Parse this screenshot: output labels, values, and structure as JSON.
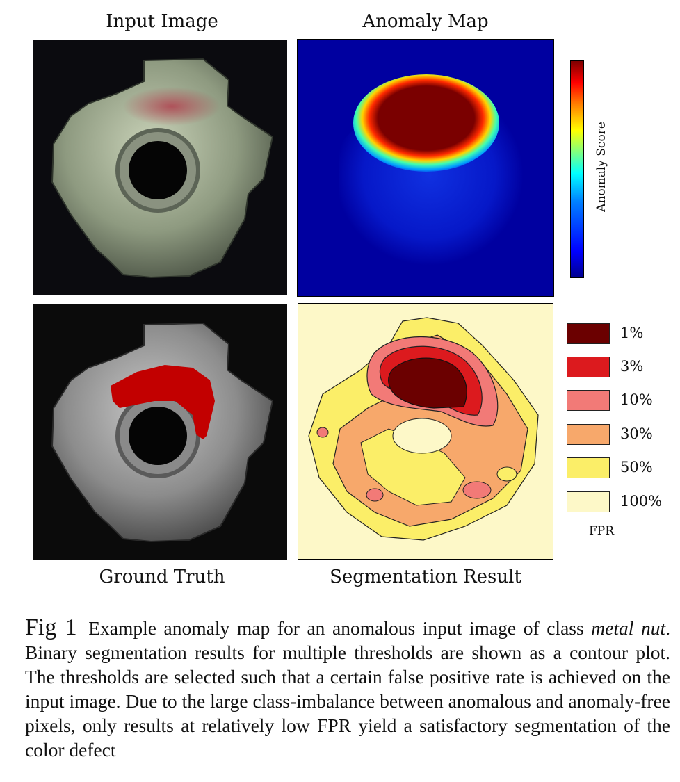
{
  "panels": {
    "input_title": "Input Image",
    "anomaly_title": "Anomaly Map",
    "gt_title": "Ground Truth",
    "seg_title": "Segmentation Result"
  },
  "colorbar": {
    "label": "Anomaly Score"
  },
  "legend": {
    "title": "FPR",
    "items": [
      {
        "label": "1%",
        "color": "#6b0000"
      },
      {
        "label": "3%",
        "color": "#dc1a1e"
      },
      {
        "label": "10%",
        "color": "#f27a77"
      },
      {
        "label": "30%",
        "color": "#f7a86b"
      },
      {
        "label": "50%",
        "color": "#fbee68"
      },
      {
        "label": "100%",
        "color": "#fdf8c8"
      }
    ]
  },
  "caption": {
    "fig_label": "Fig 1",
    "text_a": "Example anomaly map for an anomalous input image of class ",
    "class_name": "metal nut",
    "text_b": ". Binary segmentation results for multiple thresholds are shown as a contour plot. The thresholds are selected such that a certain false positive rate is achieved on the input image. Due to the large class-imbalance between anomalous and anomaly-free pixels, only results at relatively low FPR yield a satisfactory segmentation of the color defect"
  }
}
